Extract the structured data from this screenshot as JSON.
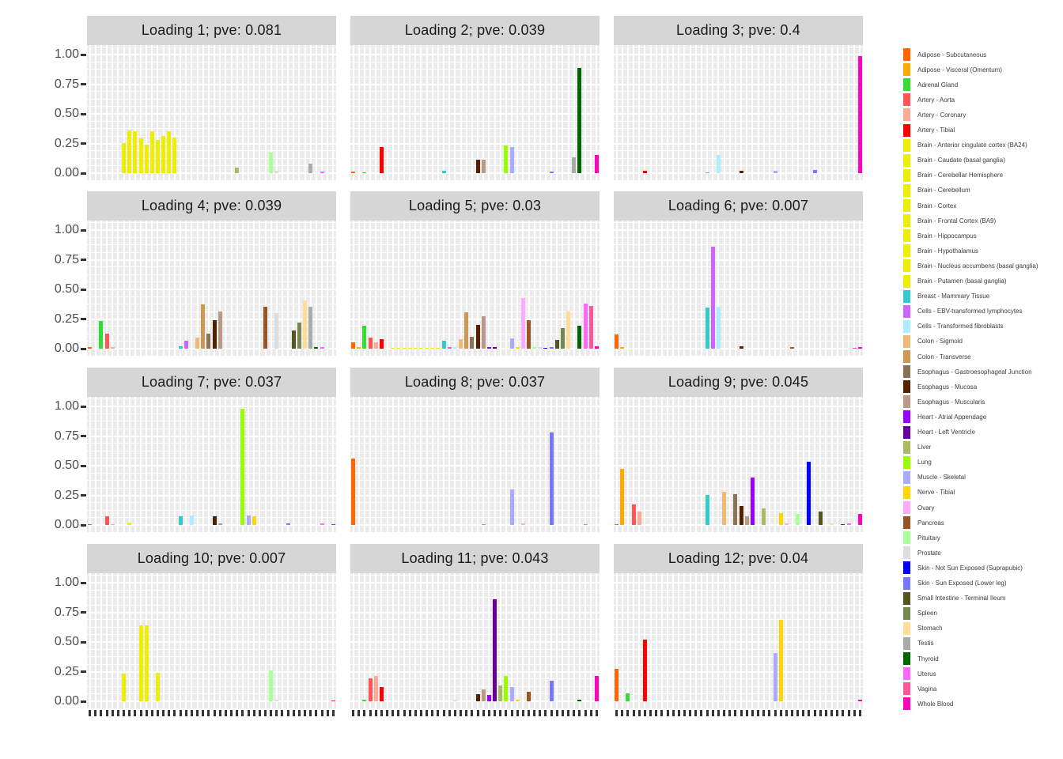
{
  "chart_data": {
    "type": "bar",
    "description": "Faceted bar chart of 12 factor loadings across 44 GTEx tissues; one colored bar per tissue per facet.",
    "ylim": [
      0,
      1
    ],
    "y_tick_labels": [
      "1.00",
      "0.75",
      "0.50",
      "0.25",
      "0.00"
    ],
    "y_tick_values": [
      1.0,
      0.75,
      0.5,
      0.25,
      0.0
    ],
    "grid": "white mesh on gray panel",
    "legend_position": "right",
    "categories": [
      "Adipose - Subcutaneous",
      "Adipose - Visceral (Omentum)",
      "Adrenal Gland",
      "Artery - Aorta",
      "Artery - Coronary",
      "Artery - Tibial",
      "Brain - Anterior cingulate cortex (BA24)",
      "Brain - Caudate (basal ganglia)",
      "Brain - Cerebellar Hemisphere",
      "Brain - Cerebellum",
      "Brain - Cortex",
      "Brain - Frontal Cortex (BA9)",
      "Brain - Hippocampus",
      "Brain - Hypothalamus",
      "Brain - Nucleus accumbens (basal ganglia)",
      "Brain - Putamen (basal ganglia)",
      "Breast - Mammary Tissue",
      "Cells - EBV-transformed lymphocytes",
      "Cells - Transformed fibroblasts",
      "Colon - Sigmoid",
      "Colon - Transverse",
      "Esophagus - Gastroesophageal Junction",
      "Esophagus - Mucosa",
      "Esophagus - Muscularis",
      "Heart - Atrial Appendage",
      "Heart - Left Ventricle",
      "Liver",
      "Lung",
      "Muscle - Skeletal",
      "Nerve - Tibial",
      "Ovary",
      "Pancreas",
      "Pituitary",
      "Prostate",
      "Skin - Not Sun Exposed (Suprapubic)",
      "Skin - Sun Exposed (Lower leg)",
      "Small Intestine - Terminal Ileum",
      "Spleen",
      "Stomach",
      "Testis",
      "Thyroid",
      "Uterus",
      "Vagina",
      "Whole Blood"
    ],
    "colors": [
      "#FF6600",
      "#FFAA00",
      "#33DD33",
      "#FF5555",
      "#FFAA99",
      "#FF0000",
      "#EEEE00",
      "#EEEE00",
      "#EEEE00",
      "#EEEE00",
      "#EEEE00",
      "#EEEE00",
      "#EEEE00",
      "#EEEE00",
      "#EEEE00",
      "#EEEE00",
      "#33CCCC",
      "#CC66FF",
      "#AAEEFF",
      "#EEBB77",
      "#CC9955",
      "#8B7355",
      "#552200",
      "#BB9988",
      "#9900FF",
      "#660099",
      "#AABB66",
      "#99FF00",
      "#AAAAFF",
      "#FFD700",
      "#FFAAFF",
      "#995522",
      "#AAFF99",
      "#DDDDDD",
      "#0000FF",
      "#7777FF",
      "#555522",
      "#778855",
      "#FFDD99",
      "#AAAAAA",
      "#006600",
      "#FF66FF",
      "#FF5599",
      "#FF00BB"
    ],
    "facets": [
      {
        "title": "Loading 1; pve: 0.081",
        "values": {
          "7": 0.25,
          "8": 0.36,
          "9": 0.35,
          "10": 0.29,
          "11": 0.24,
          "12": 0.35,
          "13": 0.28,
          "14": 0.31,
          "15": 0.35,
          "16": 0.3,
          "27": 0.045,
          "33": 0.17,
          "34": 0.02,
          "40": 0.08,
          "42": 0.012
        }
      },
      {
        "title": "Loading 2; pve: 0.039",
        "values": {
          "1": 0.01,
          "3": 0.008,
          "6": 0.22,
          "17": 0.02,
          "23": 0.11,
          "24": 0.115,
          "28": 0.235,
          "29": 0.22,
          "36": 0.015,
          "40": 0.13,
          "41": 0.885,
          "44": 0.15
        }
      },
      {
        "title": "Loading 3; pve: 0.4",
        "values": {
          "6": 0.02,
          "17": 0.008,
          "19": 0.15,
          "23": 0.02,
          "29": 0.02,
          "36": 0.025,
          "44": 0.985
        }
      },
      {
        "title": "Loading 4; pve: 0.039",
        "values": {
          "1": 0.012,
          "3": 0.23,
          "4": 0.125,
          "5": 0.01,
          "17": 0.02,
          "18": 0.065,
          "20": 0.09,
          "21": 0.375,
          "22": 0.125,
          "23": 0.24,
          "24": 0.31,
          "32": 0.35,
          "34": 0.3,
          "37": 0.155,
          "38": 0.22,
          "39": 0.405,
          "40": 0.355,
          "41": 0.012,
          "42": 0.01
        }
      },
      {
        "title": "Loading 5; pve: 0.03",
        "values": {
          "1": 0.05,
          "2": 0.012,
          "3": 0.19,
          "4": 0.09,
          "5": 0.055,
          "6": 0.08,
          "8": 0.007,
          "9": 0.007,
          "10": 0.007,
          "11": 0.007,
          "12": 0.007,
          "13": 0.007,
          "14": 0.007,
          "15": 0.007,
          "16": 0.007,
          "17": 0.065,
          "18": 0.012,
          "19": 0.012,
          "20": 0.08,
          "21": 0.305,
          "22": 0.1,
          "23": 0.2,
          "24": 0.27,
          "25": 0.015,
          "26": 0.015,
          "29": 0.085,
          "30": 0.01,
          "31": 0.425,
          "32": 0.24,
          "33": 0.01,
          "34": 0.01,
          "35": 0.008,
          "36": 0.012,
          "37": 0.07,
          "38": 0.17,
          "39": 0.315,
          "41": 0.19,
          "42": 0.38,
          "43": 0.36,
          "44": 0.02
        }
      },
      {
        "title": "Loading 6; pve: 0.007",
        "values": {
          "1": 0.12,
          "2": 0.01,
          "17": 0.345,
          "18": 0.86,
          "19": 0.355,
          "23": 0.018,
          "32": 0.012,
          "43": 0.008,
          "44": 0.01
        }
      },
      {
        "title": "Loading 7; pve: 0.037",
        "values": {
          "1": 0.008,
          "4": 0.07,
          "5": 0.006,
          "8": 0.02,
          "17": 0.07,
          "19": 0.08,
          "23": 0.07,
          "24": 0.012,
          "28": 0.98,
          "29": 0.08,
          "30": 0.07,
          "36": 0.01,
          "42": 0.012,
          "44": 0.006
        }
      },
      {
        "title": "Loading 8; pve: 0.037",
        "values": {
          "1": 0.56,
          "24": 0.006,
          "29": 0.3,
          "31": 0.01,
          "36": 0.78,
          "42": 0.006
        }
      },
      {
        "title": "Loading 9; pve: 0.045",
        "values": {
          "1": 0.008,
          "2": 0.47,
          "4": 0.17,
          "5": 0.11,
          "17": 0.25,
          "20": 0.28,
          "22": 0.26,
          "23": 0.16,
          "24": 0.07,
          "25": 0.4,
          "27": 0.14,
          "30": 0.1,
          "31": 0.01,
          "33": 0.09,
          "35": 0.53,
          "37": 0.115,
          "39": 0.01,
          "41": 0.008,
          "42": 0.012,
          "44": 0.09
        }
      },
      {
        "title": "Loading 10; pve: 0.007",
        "values": {
          "7": 0.23,
          "10": 0.64,
          "11": 0.64,
          "13": 0.24,
          "33": 0.26,
          "34": 0.01,
          "44": 0.008
        }
      },
      {
        "title": "Loading 11; pve: 0.043",
        "values": {
          "3": 0.012,
          "4": 0.19,
          "5": 0.21,
          "6": 0.12,
          "19": 0.01,
          "23": 0.06,
          "24": 0.1,
          "25": 0.05,
          "26": 0.86,
          "27": 0.13,
          "28": 0.21,
          "29": 0.12,
          "30": 0.01,
          "32": 0.08,
          "36": 0.17,
          "41": 0.012,
          "44": 0.21
        }
      },
      {
        "title": "Loading 12; pve: 0.04",
        "values": {
          "1": 0.27,
          "3": 0.065,
          "6": 0.52,
          "29": 0.41,
          "30": 0.69,
          "44": 0.01
        }
      }
    ]
  }
}
